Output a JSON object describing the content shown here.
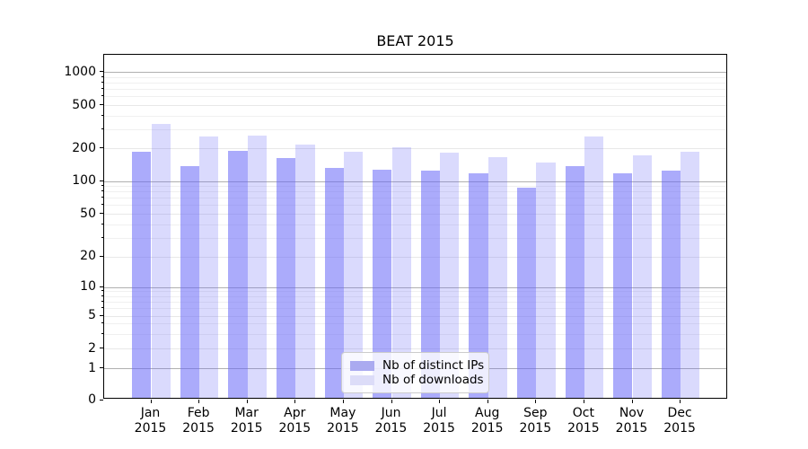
{
  "chart_data": {
    "type": "bar",
    "title": "BEAT 2015",
    "categories": [
      "Jan 2015",
      "Feb 2015",
      "Mar 2015",
      "Apr 2015",
      "May 2015",
      "Jun 2015",
      "Jul 2015",
      "Aug 2015",
      "Sep 2015",
      "Oct 2015",
      "Nov 2015",
      "Dec 2015"
    ],
    "series": [
      {
        "name": "Nb of distinct IPs",
        "color": "rgba(102,102,247,0.55)",
        "legend_color": "#aaaaf0",
        "values": [
          178,
          133,
          183,
          155,
          126,
          122,
          120,
          113,
          84,
          132,
          113,
          119
        ]
      },
      {
        "name": "Nb of downloads",
        "color": "rgba(102,102,247,0.24)",
        "legend_color": "#dcdcf8",
        "values": [
          320,
          249,
          251,
          209,
          178,
          196,
          175,
          160,
          143,
          247,
          167,
          180
        ]
      }
    ],
    "xlabel": "",
    "ylabel": "",
    "yscale": "symlog",
    "ytick_labels": [
      0,
      1,
      2,
      5,
      10,
      20,
      50,
      100,
      200,
      500,
      1000
    ],
    "ylim": [
      0,
      1500
    ],
    "grid": true,
    "legend_position": "lower center",
    "axis_color": "#000000",
    "major_grid_color": "#b0b0b0",
    "minor_grid_color": "#e8e8e8"
  }
}
